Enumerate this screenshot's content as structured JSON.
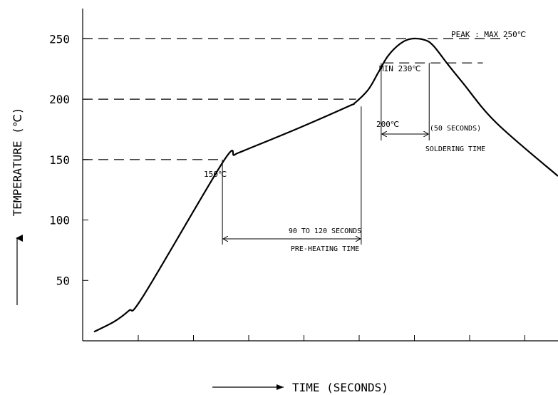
{
  "chart_data": {
    "type": "line",
    "title": "",
    "xlabel": "TIME (SECONDS)",
    "ylabel": "TEMPERATURE (℃)",
    "ylim": [
      0,
      275
    ],
    "xlim": [
      0,
      100
    ],
    "y_ticks": [
      {
        "value": 50,
        "label": "50"
      },
      {
        "value": 100,
        "label": "100"
      },
      {
        "value": 150,
        "label": "150"
      },
      {
        "value": 200,
        "label": "200"
      },
      {
        "value": 250,
        "label": "250"
      }
    ],
    "x_tick_count": 9,
    "grid": false,
    "series": [
      {
        "name": "",
        "x": [
          2.4,
          6.6,
          9.7,
          12.8,
          29.4,
          31.9,
          33.9,
          45.1,
          55.9,
          57.3,
          60.1,
          62.2,
          64.2,
          66.8,
          69.1,
          71.9,
          73.8,
          76.8,
          80.0,
          87.0,
          100.0
        ],
        "y": [
          7.5,
          15.8,
          24.9,
          37.4,
          147.3,
          153.8,
          157.4,
          175.5,
          194.1,
          197.0,
          208.0,
          222.1,
          235.6,
          245.9,
          250.0,
          249.1,
          244.2,
          228.9,
          213.4,
          180.5,
          136.3
        ]
      }
    ],
    "reference_lines": [
      {
        "y": 250
      },
      {
        "y": 230
      },
      {
        "y": 200
      },
      {
        "y": 150
      }
    ],
    "annotations": {
      "peak": "PEAK : MAX 250℃",
      "min230": "MIN 230℃",
      "t200": "200℃",
      "t150": "150℃",
      "soldering_duration": "(50 SECONDS)",
      "soldering_label": "SOLDERING TIME",
      "preheat_duration": "90 TO 120 SECONDS",
      "preheat_label": "PRE-HEATING TIME"
    },
    "spans": {
      "preheat": {
        "x_start": 29.4,
        "x_end": 58.6
      },
      "soldering": {
        "x_start": 62.8,
        "x_end": 72.9
      }
    }
  }
}
